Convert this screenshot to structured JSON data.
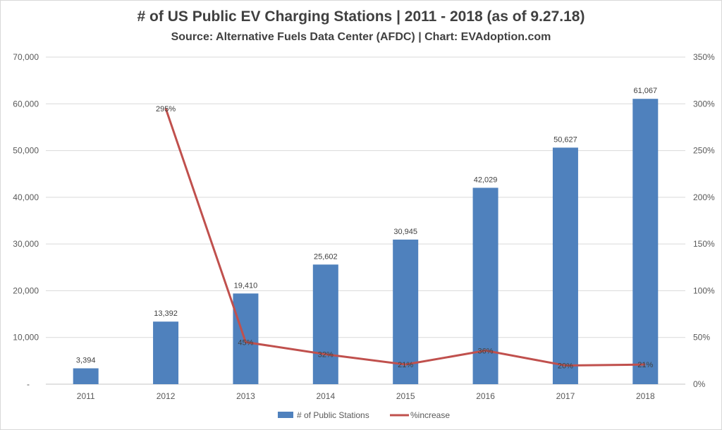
{
  "chart_data": {
    "type": "bar+line",
    "title": "# of US Public EV Charging Stations | 2011 - 2018 (as of 9.27.18)",
    "subtitle": "Source: Alternative Fuels Data Center (AFDC) | Chart: EVAdoption.com",
    "categories": [
      "2011",
      "2012",
      "2013",
      "2014",
      "2015",
      "2016",
      "2017",
      "2018"
    ],
    "series": [
      {
        "name": "# of Public Stations",
        "type": "bar",
        "axis": "left",
        "color": "#4f81bd",
        "values": [
          3394,
          13392,
          19410,
          25602,
          30945,
          42029,
          50627,
          61067
        ],
        "labels": [
          "3,394",
          "13,392",
          "19,410",
          "25,602",
          "30,945",
          "42,029",
          "50,627",
          "61,067"
        ]
      },
      {
        "name": "%increase",
        "type": "line",
        "axis": "right",
        "color": "#c0504d",
        "values": [
          null,
          295,
          45,
          32,
          21,
          36,
          20,
          21
        ],
        "labels": [
          "",
          "295%",
          "45%",
          "32%",
          "21%",
          "36%",
          "20%",
          "21%"
        ]
      }
    ],
    "left_axis": {
      "range": [
        0,
        70000
      ],
      "ticks": [
        "-",
        "10,000",
        "20,000",
        "30,000",
        "40,000",
        "50,000",
        "60,000",
        "70,000"
      ]
    },
    "right_axis": {
      "range": [
        0,
        350
      ],
      "ticks": [
        "0%",
        "50%",
        "100%",
        "150%",
        "200%",
        "250%",
        "300%",
        "350%"
      ]
    },
    "grid": true,
    "legend": "bottom"
  }
}
